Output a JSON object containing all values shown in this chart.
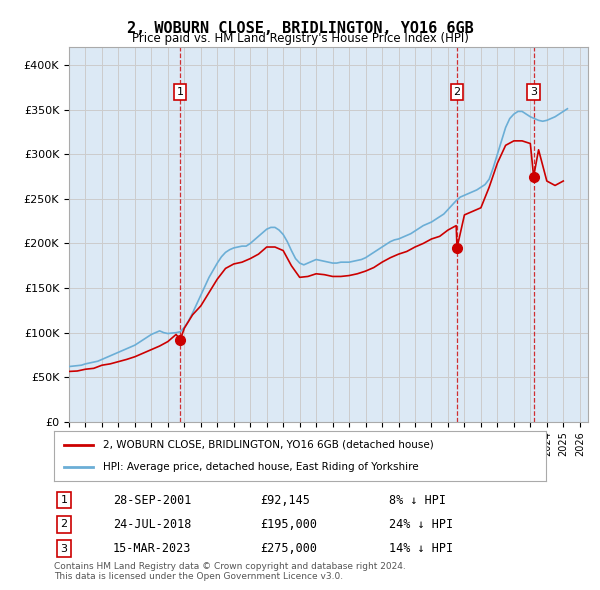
{
  "title": "2, WOBURN CLOSE, BRIDLINGTON, YO16 6GB",
  "subtitle": "Price paid vs. HM Land Registry's House Price Index (HPI)",
  "ylabel_ticks": [
    "£0",
    "£50K",
    "£100K",
    "£150K",
    "£200K",
    "£250K",
    "£300K",
    "£350K",
    "£400K"
  ],
  "ylim": [
    0,
    420000
  ],
  "xlim_start": 1995.0,
  "xlim_end": 2026.5,
  "hpi_color": "#6baed6",
  "price_color": "#cc0000",
  "sale_color": "#cc0000",
  "grid_color": "#cccccc",
  "bg_color": "#dce9f5",
  "plot_bg": "#dce9f5",
  "legend1": "2, WOBURN CLOSE, BRIDLINGTON, YO16 6GB (detached house)",
  "legend2": "HPI: Average price, detached house, East Riding of Yorkshire",
  "sales": [
    {
      "num": 1,
      "date": "28-SEP-2001",
      "price": 92145,
      "pct": "8%",
      "dir": "↓",
      "x_year": 2001.75
    },
    {
      "num": 2,
      "date": "24-JUL-2018",
      "price": 195000,
      "pct": "24%",
      "dir": "↓",
      "x_year": 2018.55
    },
    {
      "num": 3,
      "date": "15-MAR-2023",
      "price": 275000,
      "pct": "14%",
      "dir": "↓",
      "x_year": 2023.2
    }
  ],
  "footer": "Contains HM Land Registry data © Crown copyright and database right 2024.\nThis data is licensed under the Open Government Licence v3.0.",
  "hpi_data": {
    "years": [
      1995.0,
      1995.25,
      1995.5,
      1995.75,
      1996.0,
      1996.25,
      1996.5,
      1996.75,
      1997.0,
      1997.25,
      1997.5,
      1997.75,
      1998.0,
      1998.25,
      1998.5,
      1998.75,
      1999.0,
      1999.25,
      1999.5,
      1999.75,
      2000.0,
      2000.25,
      2000.5,
      2000.75,
      2001.0,
      2001.25,
      2001.5,
      2001.75,
      2002.0,
      2002.25,
      2002.5,
      2002.75,
      2003.0,
      2003.25,
      2003.5,
      2003.75,
      2004.0,
      2004.25,
      2004.5,
      2004.75,
      2005.0,
      2005.25,
      2005.5,
      2005.75,
      2006.0,
      2006.25,
      2006.5,
      2006.75,
      2007.0,
      2007.25,
      2007.5,
      2007.75,
      2008.0,
      2008.25,
      2008.5,
      2008.75,
      2009.0,
      2009.25,
      2009.5,
      2009.75,
      2010.0,
      2010.25,
      2010.5,
      2010.75,
      2011.0,
      2011.25,
      2011.5,
      2011.75,
      2012.0,
      2012.25,
      2012.5,
      2012.75,
      2013.0,
      2013.25,
      2013.5,
      2013.75,
      2014.0,
      2014.25,
      2014.5,
      2014.75,
      2015.0,
      2015.25,
      2015.5,
      2015.75,
      2016.0,
      2016.25,
      2016.5,
      2016.75,
      2017.0,
      2017.25,
      2017.5,
      2017.75,
      2018.0,
      2018.25,
      2018.5,
      2018.75,
      2019.0,
      2019.25,
      2019.5,
      2019.75,
      2020.0,
      2020.25,
      2020.5,
      2020.75,
      2021.0,
      2021.25,
      2021.5,
      2021.75,
      2022.0,
      2022.25,
      2022.5,
      2022.75,
      2023.0,
      2023.25,
      2023.5,
      2023.75,
      2024.0,
      2024.25,
      2024.5,
      2024.75,
      2025.0,
      2025.25
    ],
    "values": [
      62000,
      62500,
      63000,
      63500,
      65000,
      66000,
      67000,
      68000,
      70000,
      72000,
      74000,
      76000,
      78000,
      80000,
      82000,
      84000,
      86000,
      89000,
      92000,
      95000,
      98000,
      100000,
      102000,
      100000,
      99000,
      99500,
      100000,
      101000,
      106000,
      113000,
      122000,
      132000,
      142000,
      152000,
      162000,
      170000,
      178000,
      185000,
      190000,
      193000,
      195000,
      196000,
      197000,
      197000,
      200000,
      204000,
      208000,
      212000,
      216000,
      218000,
      218000,
      215000,
      210000,
      202000,
      192000,
      183000,
      178000,
      176000,
      178000,
      180000,
      182000,
      181000,
      180000,
      179000,
      178000,
      178000,
      179000,
      179000,
      179000,
      180000,
      181000,
      182000,
      184000,
      187000,
      190000,
      193000,
      196000,
      199000,
      202000,
      204000,
      205000,
      207000,
      209000,
      211000,
      214000,
      217000,
      220000,
      222000,
      224000,
      227000,
      230000,
      233000,
      238000,
      243000,
      248000,
      252000,
      254000,
      256000,
      258000,
      260000,
      263000,
      266000,
      272000,
      285000,
      300000,
      315000,
      330000,
      340000,
      345000,
      348000,
      348000,
      345000,
      342000,
      340000,
      338000,
      337000,
      338000,
      340000,
      342000,
      345000,
      348000,
      351000
    ]
  },
  "price_data": {
    "years": [
      1995.0,
      1995.5,
      1996.0,
      1996.5,
      1997.0,
      1997.5,
      1998.0,
      1998.5,
      1999.0,
      1999.5,
      2000.0,
      2000.5,
      2001.0,
      2001.5,
      2001.75,
      2002.0,
      2002.5,
      2003.0,
      2003.5,
      2004.0,
      2004.5,
      2005.0,
      2005.5,
      2006.0,
      2006.5,
      2007.0,
      2007.5,
      2008.0,
      2008.5,
      2009.0,
      2009.5,
      2010.0,
      2010.5,
      2011.0,
      2011.5,
      2012.0,
      2012.5,
      2013.0,
      2013.5,
      2014.0,
      2014.5,
      2015.0,
      2015.5,
      2016.0,
      2016.5,
      2017.0,
      2017.5,
      2018.0,
      2018.5,
      2018.55,
      2019.0,
      2019.5,
      2020.0,
      2020.5,
      2021.0,
      2021.5,
      2022.0,
      2022.5,
      2023.0,
      2023.2,
      2023.5,
      2024.0,
      2024.5,
      2025.0
    ],
    "values": [
      56500,
      57000,
      59000,
      60000,
      63500,
      65000,
      67500,
      70000,
      73000,
      77000,
      81000,
      85000,
      90000,
      98000,
      92145,
      105000,
      120000,
      130000,
      145000,
      160000,
      172000,
      177000,
      179000,
      183000,
      188000,
      196000,
      196000,
      192000,
      175000,
      162000,
      163000,
      166000,
      165000,
      163000,
      163000,
      164000,
      166000,
      169000,
      173000,
      179000,
      184000,
      188000,
      191000,
      196000,
      200000,
      205000,
      208000,
      215000,
      220000,
      195000,
      232000,
      236000,
      240000,
      263000,
      290000,
      310000,
      315000,
      315000,
      312000,
      275000,
      305000,
      270000,
      265000,
      270000
    ]
  }
}
